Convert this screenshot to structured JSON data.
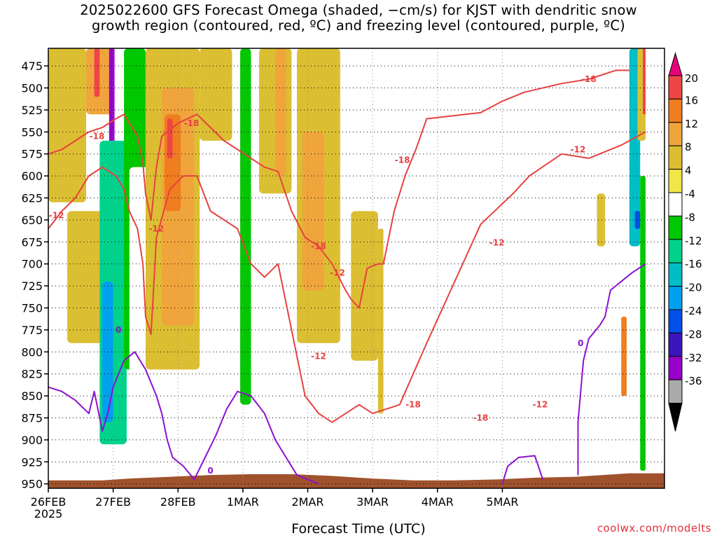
{
  "title": {
    "line1": "2025022600 GFS Forecast Omega (shaded, −cm/s) for KJST with dendritic snow",
    "line2": "growth region (contoured, red, ºC) and freezing level (contoured, purple, ºC)"
  },
  "credit": "coolwx.com/modelts",
  "chart_data": {
    "type": "heatmap",
    "xlabel": "Forecast Time (UTC)",
    "ylabel": "",
    "x_ticks": [
      "26FEB",
      "27FEB",
      "28FEB",
      "1MAR",
      "2MAR",
      "3MAR",
      "4MAR",
      "5MAR"
    ],
    "x_tick_year": "2025",
    "x_range_hours": [
      0,
      228
    ],
    "y_ticks": [
      "475",
      "500",
      "525",
      "550",
      "575",
      "600",
      "625",
      "650",
      "675",
      "700",
      "725",
      "750",
      "775",
      "800",
      "825",
      "850",
      "875",
      "900",
      "925",
      "950"
    ],
    "y_range_hPa": [
      455,
      955
    ],
    "colorbar": {
      "labels": [
        "20",
        "16",
        "12",
        "8",
        "4",
        "-4",
        "-8",
        "-12",
        "-16",
        "-20",
        "-24",
        "-28",
        "-32",
        "-36"
      ],
      "colors": [
        "#e8007a",
        "#f04545",
        "#f07d1e",
        "#f0a53c",
        "#dcbe32",
        "#f0e646",
        "#ffffff",
        "#00c800",
        "#00d28c",
        "#00bec8",
        "#00a0f0",
        "#0050e6",
        "#3c14be",
        "#9600c8",
        "#aaaaaa",
        "#000000"
      ]
    },
    "omega_regions": [
      {
        "value": 6,
        "x0": 0,
        "x1": 14,
        "p0": 455,
        "p1": 630
      },
      {
        "value": 6,
        "x0": 7,
        "x1": 22,
        "p0": 640,
        "p1": 790
      },
      {
        "value": 10,
        "x0": 14,
        "x1": 24,
        "p0": 455,
        "p1": 530
      },
      {
        "value": 18,
        "x0": 17,
        "x1": 19,
        "p0": 455,
        "p1": 510
      },
      {
        "value": -36,
        "x0": 22.5,
        "x1": 24.5,
        "p0": 455,
        "p1": 730
      },
      {
        "value": -14,
        "x0": 19,
        "x1": 29,
        "p0": 560,
        "p1": 905
      },
      {
        "value": -22,
        "x0": 20,
        "x1": 24,
        "p0": 720,
        "p1": 880
      },
      {
        "value": -10,
        "x0": 28,
        "x1": 36,
        "p0": 455,
        "p1": 820
      },
      {
        "value": -6,
        "x0": 30,
        "x1": 45,
        "p0": 590,
        "p1": 930
      },
      {
        "value": 6,
        "x0": 36,
        "x1": 56,
        "p0": 455,
        "p1": 820
      },
      {
        "value": 10,
        "x0": 42,
        "x1": 54,
        "p0": 500,
        "p1": 770
      },
      {
        "value": 14,
        "x0": 43,
        "x1": 49,
        "p0": 530,
        "p1": 640
      },
      {
        "value": 18,
        "x0": 44,
        "x1": 46,
        "p0": 535,
        "p1": 580
      },
      {
        "value": 6,
        "x0": 56,
        "x1": 68,
        "p0": 455,
        "p1": 560
      },
      {
        "value": -6,
        "x0": 68,
        "x1": 80,
        "p0": 840,
        "p1": 935
      },
      {
        "value": -10,
        "x0": 71,
        "x1": 75,
        "p0": 455,
        "p1": 860
      },
      {
        "value": 6,
        "x0": 78,
        "x1": 90,
        "p0": 455,
        "p1": 620
      },
      {
        "value": 10,
        "x0": 84,
        "x1": 88,
        "p0": 455,
        "p1": 600
      },
      {
        "value": -6,
        "x0": 80,
        "x1": 100,
        "p0": 830,
        "p1": 945
      },
      {
        "value": 6,
        "x0": 92,
        "x1": 108,
        "p0": 455,
        "p1": 790
      },
      {
        "value": 10,
        "x0": 94,
        "x1": 102,
        "p0": 550,
        "p1": 730
      },
      {
        "value": 6,
        "x0": 112,
        "x1": 122,
        "p0": 640,
        "p1": 810
      },
      {
        "value": -6,
        "x0": 114,
        "x1": 120,
        "p0": 860,
        "p1": 945
      },
      {
        "value": 6,
        "x0": 122,
        "x1": 124,
        "p0": 660,
        "p1": 870
      },
      {
        "value": -6,
        "x0": 124,
        "x1": 130,
        "p0": 455,
        "p1": 490
      },
      {
        "value": -6,
        "x0": 165,
        "x1": 168,
        "p0": 480,
        "p1": 530
      },
      {
        "value": 6,
        "x0": 203,
        "x1": 206,
        "p0": 620,
        "p1": 680
      },
      {
        "value": -6,
        "x0": 203,
        "x1": 206,
        "p0": 895,
        "p1": 905
      },
      {
        "value": -6,
        "x0": 212,
        "x1": 215,
        "p0": 455,
        "p1": 900
      },
      {
        "value": -18,
        "x0": 215,
        "x1": 219,
        "p0": 455,
        "p1": 680
      },
      {
        "value": -26,
        "x0": 217,
        "x1": 219,
        "p0": 640,
        "p1": 660
      },
      {
        "value": 12,
        "x0": 212,
        "x1": 214,
        "p0": 760,
        "p1": 850
      },
      {
        "value": 6,
        "x0": 218,
        "x1": 221,
        "p0": 455,
        "p1": 560
      },
      {
        "value": 18,
        "x0": 220,
        "x1": 221,
        "p0": 455,
        "p1": 530
      },
      {
        "value": -10,
        "x0": 219,
        "x1": 221,
        "p0": 600,
        "p1": 935
      }
    ],
    "contours": [
      {
        "level": "-12",
        "color": "#e84040",
        "points": [
          [
            0,
            660
          ],
          [
            5,
            640
          ],
          [
            10,
            625
          ],
          [
            15,
            600
          ],
          [
            20,
            590
          ],
          [
            25,
            600
          ],
          [
            28,
            615
          ],
          [
            30,
            640
          ],
          [
            33,
            660
          ],
          [
            35,
            700
          ],
          [
            36,
            760
          ],
          [
            38,
            780
          ],
          [
            40,
            670
          ],
          [
            45,
            615
          ],
          [
            50,
            600
          ],
          [
            55,
            600
          ],
          [
            60,
            640
          ],
          [
            65,
            650
          ],
          [
            70,
            660
          ],
          [
            75,
            700
          ],
          [
            80,
            715
          ],
          [
            85,
            700
          ],
          [
            95,
            850
          ],
          [
            100,
            870
          ],
          [
            105,
            880
          ],
          [
            110,
            870
          ],
          [
            115,
            860
          ],
          [
            120,
            870
          ],
          [
            130,
            860
          ],
          [
            140,
            790
          ],
          [
            160,
            655
          ],
          [
            172,
            620
          ],
          [
            178,
            600
          ],
          [
            190,
            575
          ],
          [
            200,
            580
          ],
          [
            212,
            565
          ],
          [
            221,
            550
          ]
        ]
      },
      {
        "level": "-18",
        "color": "#e84040",
        "points": [
          [
            0,
            575
          ],
          [
            5,
            570
          ],
          [
            10,
            560
          ],
          [
            15,
            550
          ],
          [
            20,
            545
          ],
          [
            25,
            535
          ],
          [
            28,
            530
          ],
          [
            30,
            540
          ],
          [
            33,
            555
          ],
          [
            35,
            585
          ],
          [
            36,
            620
          ],
          [
            38,
            650
          ],
          [
            40,
            590
          ],
          [
            42,
            555
          ],
          [
            48,
            540
          ],
          [
            55,
            530
          ],
          [
            60,
            545
          ],
          [
            65,
            560
          ],
          [
            70,
            570
          ],
          [
            75,
            580
          ],
          [
            80,
            590
          ],
          [
            85,
            595
          ],
          [
            90,
            640
          ],
          [
            95,
            670
          ],
          [
            100,
            680
          ],
          [
            105,
            700
          ],
          [
            110,
            730
          ],
          [
            112,
            740
          ],
          [
            115,
            750
          ],
          [
            118,
            705
          ],
          [
            122,
            700
          ],
          [
            124,
            700
          ],
          [
            128,
            640
          ],
          [
            132,
            600
          ],
          [
            136,
            570
          ],
          [
            140,
            535
          ],
          [
            160,
            528
          ],
          [
            168,
            515
          ],
          [
            176,
            505
          ],
          [
            190,
            495
          ],
          [
            200,
            490
          ],
          [
            210,
            480
          ],
          [
            215,
            480
          ]
        ]
      },
      {
        "level": "0",
        "color": "#8c10d0",
        "points": [
          [
            0,
            840
          ],
          [
            5,
            845
          ],
          [
            10,
            855
          ],
          [
            15,
            870
          ],
          [
            17,
            845
          ],
          [
            18,
            860
          ],
          [
            20,
            890
          ],
          [
            22,
            870
          ],
          [
            24,
            840
          ],
          [
            28,
            810
          ],
          [
            32,
            800
          ],
          [
            36,
            820
          ],
          [
            40,
            850
          ],
          [
            42,
            870
          ],
          [
            44,
            900
          ],
          [
            46,
            920
          ],
          [
            50,
            930
          ],
          [
            54,
            945
          ],
          [
            58,
            920
          ],
          [
            62,
            895
          ],
          [
            66,
            865
          ],
          [
            70,
            845
          ],
          [
            75,
            850
          ],
          [
            80,
            870
          ],
          [
            84,
            900
          ],
          [
            88,
            920
          ],
          [
            92,
            940
          ],
          [
            96,
            945
          ],
          [
            100,
            950
          ]
        ]
      },
      {
        "level": "0",
        "color": "#8c10d0",
        "points": [
          [
            168,
            950
          ],
          [
            170,
            930
          ],
          [
            174,
            920
          ],
          [
            180,
            918
          ],
          [
            183,
            945
          ]
        ]
      },
      {
        "level": "0",
        "color": "#8c10d0",
        "points": [
          [
            196,
            940
          ],
          [
            196,
            880
          ],
          [
            198,
            810
          ],
          [
            200,
            785
          ],
          [
            204,
            770
          ],
          [
            206,
            760
          ],
          [
            208,
            730
          ],
          [
            212,
            720
          ],
          [
            216,
            710
          ],
          [
            221,
            700
          ]
        ]
      }
    ],
    "contour_labels": [
      {
        "text": "-12",
        "x": 3,
        "p": 645
      },
      {
        "text": "-18",
        "x": 18,
        "p": 555
      },
      {
        "text": "-18",
        "x": 53,
        "p": 540
      },
      {
        "text": "-12",
        "x": 40,
        "p": 660
      },
      {
        "text": "-18",
        "x": 100,
        "p": 680
      },
      {
        "text": "-12",
        "x": 100,
        "p": 805
      },
      {
        "text": "-18",
        "x": 131,
        "p": 582
      },
      {
        "text": "-12",
        "x": 107,
        "p": 710
      },
      {
        "text": "-18",
        "x": 135,
        "p": 860
      },
      {
        "text": "-12",
        "x": 166,
        "p": 676
      },
      {
        "text": "-18",
        "x": 160,
        "p": 875
      },
      {
        "text": "-12",
        "x": 182,
        "p": 860
      },
      {
        "text": "-18",
        "x": 200,
        "p": 490
      },
      {
        "text": "-12",
        "x": 196,
        "p": 570
      },
      {
        "text": "0",
        "x": 26,
        "p": 775
      },
      {
        "text": "0",
        "x": 60,
        "p": 935
      },
      {
        "text": "0",
        "x": 197,
        "p": 790
      }
    ],
    "terrain_color": "#a0522d",
    "grid": "dotted"
  }
}
